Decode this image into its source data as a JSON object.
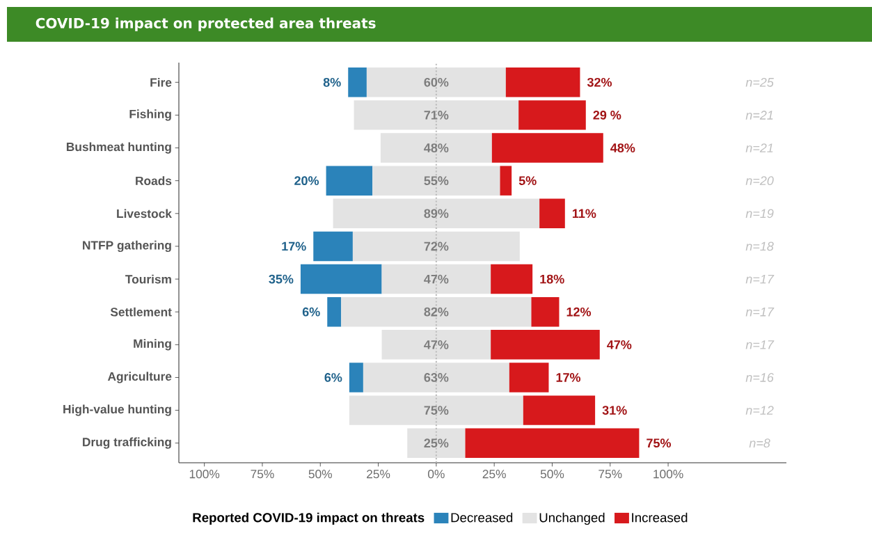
{
  "chart_data": {
    "type": "bar",
    "orientation": "horizontal",
    "title": "COVID-19 impact on protected area threats",
    "categories": [
      "Fire",
      "Fishing",
      "Bushmeat hunting",
      "Roads",
      "Livestock",
      "NTFP gathering",
      "Tourism",
      "Settlement",
      "Mining",
      "Agriculture",
      "High-value hunting",
      "Drug trafficking"
    ],
    "series": [
      {
        "name": "Decreased",
        "color": "#2b83ba",
        "values": [
          8,
          null,
          null,
          20,
          null,
          17,
          35,
          6,
          null,
          6,
          null,
          null
        ],
        "base": [
          -38,
          null,
          null,
          -47.5,
          null,
          -53,
          -58.5,
          -47,
          null,
          -37.5,
          null,
          null
        ],
        "value_labels": [
          "8%",
          null,
          null,
          "20%",
          null,
          "17%",
          "35%",
          "6%",
          null,
          "6%",
          null,
          null
        ]
      },
      {
        "name": "Unchanged",
        "color": "#e3e3e3",
        "values": [
          60,
          71,
          48,
          55,
          89,
          72,
          47,
          82,
          47,
          63,
          75,
          25
        ],
        "base": [
          -30,
          -35.5,
          -24,
          -27.5,
          -44.5,
          -36,
          -23.5,
          -41,
          -23.5,
          -31.5,
          -37.5,
          -12.5
        ],
        "value_labels": [
          "60%",
          "71%",
          "48%",
          "55%",
          "89%",
          "72%",
          "47%",
          "82%",
          "47%",
          "63%",
          "75%",
          "25%"
        ]
      },
      {
        "name": "Increased",
        "color": "#d7191c",
        "values": [
          32,
          29,
          48,
          5,
          11,
          null,
          18,
          12,
          47,
          17,
          31,
          75
        ],
        "base": [
          30,
          35.5,
          24,
          27.5,
          44.5,
          null,
          23.5,
          41,
          23.5,
          31.5,
          37.5,
          12.5
        ],
        "value_labels": [
          "32%",
          "29 %",
          "48%",
          "5%",
          "11%",
          null,
          "18%",
          "12%",
          "47%",
          "17%",
          "31%",
          "75%"
        ]
      }
    ],
    "xlim": [
      -111,
      151
    ],
    "xticks": [
      {
        "value": -100,
        "label": "100%"
      },
      {
        "value": -75,
        "label": "75%"
      },
      {
        "value": -50,
        "label": "50%"
      },
      {
        "value": -25,
        "label": "25%"
      },
      {
        "value": 0,
        "label": "0%"
      },
      {
        "value": 25,
        "label": "25%"
      },
      {
        "value": 50,
        "label": "50%"
      },
      {
        "value": 75,
        "label": "75%"
      },
      {
        "value": 100,
        "label": "100%"
      }
    ],
    "ref_lines": [
      {
        "axis": "x",
        "value": 0,
        "color": "#bdbdbd",
        "line_style": "dotted"
      }
    ],
    "annotations": [
      "n=25",
      "n=21",
      "n=21",
      "n=20",
      "n=19",
      "n=18",
      "n=17",
      "n=17",
      "n=17",
      "n=16",
      "n=12",
      "n=8"
    ],
    "legend_title": "Reported COVID-19 impact on threats",
    "legend": "bottom",
    "grid": false
  }
}
